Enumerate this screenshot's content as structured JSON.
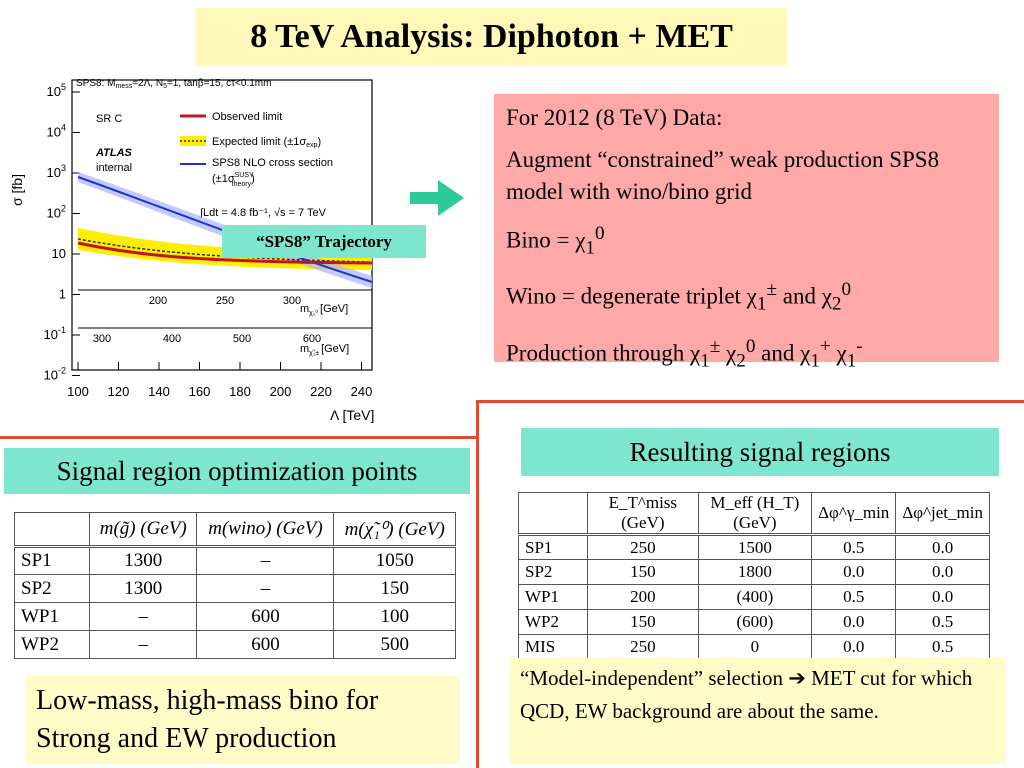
{
  "slide": {
    "title": "8 TeV Analysis: Diphoton + MET"
  },
  "plot": {
    "header": "SPS8: M",
    "header_sub": "mess",
    "header_rest": "=2Λ, N",
    "header_sub2": "5",
    "header_rest2": "=1, tanβ=15, cτ<0.1mm",
    "region": "SR C",
    "atlas": "ATLAS",
    "internal": "internal",
    "legend_observed": "Observed limit",
    "legend_expected_a": "Expected limit (±1σ",
    "legend_expected_sub": "exp",
    "legend_expected_b": ")",
    "legend_nlo": "SPS8 NLO cross section",
    "legend_nlo2_a": "(±1σ",
    "legend_nlo2_sup": "SUSY",
    "legend_nlo2_sub": "theory",
    "legend_nlo2_b": ")",
    "lumi": "∫Ldt = 4.8 fb⁻¹, √s = 7 TeV",
    "ylabel": "σ [fb]",
    "xlabel": "Λ [TeV]",
    "x_ticks": [
      "100",
      "120",
      "140",
      "160",
      "180",
      "200",
      "220",
      "240"
    ],
    "y_ticks": [
      {
        "base": "10",
        "exp": "5"
      },
      {
        "base": "10",
        "exp": "4"
      },
      {
        "base": "10",
        "exp": "3"
      },
      {
        "base": "10",
        "exp": "2"
      },
      {
        "base": "10",
        "exp": ""
      },
      {
        "base": "1",
        "exp": ""
      },
      {
        "base": "10",
        "exp": "-1"
      },
      {
        "base": "10",
        "exp": "-2"
      }
    ],
    "chi_axis_ticks": [
      "200",
      "250",
      "300"
    ],
    "chi_axis_label": "m",
    "chi_axis_unit": "[GeV]",
    "gluino_axis_ticks": [
      "300",
      "400",
      "500",
      "600"
    ],
    "gluino_axis_label": "m",
    "gluino_axis_unit": "[GeV]",
    "trajectory_label": "“SPS8” Trajectory"
  },
  "description": {
    "line1": "For 2012 (8 TeV) Data:",
    "line2": "Augment “constrained” weak production SPS8 model with wino/bino grid",
    "bino_a": "Bino = χ",
    "bino_sub": "1",
    "bino_sup": "0",
    "wino_a": "Wino = degenerate triplet χ",
    "wino_sub1": "1",
    "wino_sup1": "±",
    "wino_b": " and χ",
    "wino_sub2": "2",
    "wino_sup2": "0",
    "prod_a": "Production through χ",
    "prod_sub1": "1",
    "prod_sup1": "±",
    "prod_b": " χ",
    "prod_sub2": "2",
    "prod_sup2": "0",
    "prod_c": " and χ",
    "prod_sub3": "1",
    "prod_sup3": "+",
    "prod_d": " χ",
    "prod_sub4": "1",
    "prod_sup4": "-"
  },
  "optimization": {
    "label": "Signal region optimization points",
    "headers": [
      "",
      "m(g̃) (GeV)",
      "m(wino) (GeV)",
      "m(χ̃₁⁰) (GeV)"
    ],
    "rows": [
      [
        "SP1",
        "1300",
        "–",
        "1050"
      ],
      [
        "SP2",
        "1300",
        "–",
        "150"
      ],
      [
        "WP1",
        "–",
        "600",
        "100"
      ],
      [
        "WP2",
        "–",
        "600",
        "500"
      ]
    ],
    "footnote": "Low-mass, high-mass bino for Strong and EW production"
  },
  "signal_regions": {
    "label": "Resulting signal regions",
    "headers": [
      "",
      "E_T^miss (GeV)",
      "M_eff (H_T) (GeV)",
      "Δφ^γ_min",
      "Δφ^jet_min"
    ],
    "rows": [
      [
        "SP1",
        "250",
        "1500",
        "0.5",
        "0.0"
      ],
      [
        "SP2",
        "150",
        "1800",
        "0.0",
        "0.0"
      ],
      [
        "WP1",
        "200",
        "(400)",
        "0.5",
        "0.0"
      ],
      [
        "WP2",
        "150",
        "(600)",
        "0.0",
        "0.5"
      ],
      [
        "MIS",
        "250",
        "0",
        "0.0",
        "0.5"
      ]
    ],
    "note_a": "“Model-independent” selection ",
    "note_arrow": "➔",
    "note_b": " MET cut for which QCD, EW background are about the same."
  },
  "colors": {
    "title_bg": "#fff8b8",
    "pink_box": "#ffa8a8",
    "teal": "#7ee6cf",
    "divider": "#e0492b",
    "observed": "#c0142a",
    "expected_band": "#ffee00",
    "nlo": "#2233cc"
  }
}
